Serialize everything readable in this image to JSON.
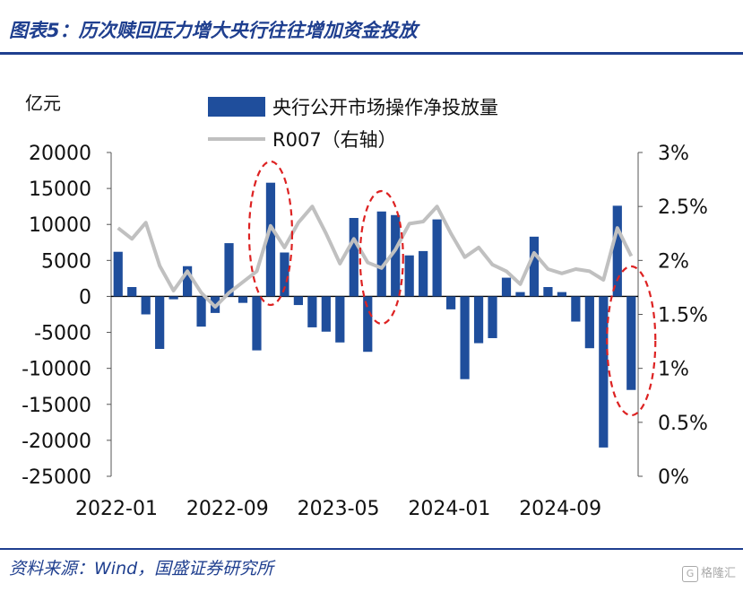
{
  "header": {
    "title": "图表5：历次赎回压力增大央行往往增加资金投放"
  },
  "footer": {
    "source": "资料来源：Wind，国盛证券研究所"
  },
  "watermark": {
    "logo": "G",
    "text": "格隆汇"
  },
  "chart_data": {
    "type": "bar",
    "y_left_unit": "亿元",
    "ylim_left": [
      -25000,
      20000
    ],
    "left_ticks": [
      "20000",
      "15000",
      "10000",
      "5000",
      "0",
      "-5000",
      "-10000",
      "-15000",
      "-20000",
      "-25000"
    ],
    "ylim_right": [
      0,
      3
    ],
    "right_ticks": [
      "3%",
      "2.5%",
      "2%",
      "1.5%",
      "1%",
      "0.5%",
      "0%"
    ],
    "x_tick_labels": [
      {
        "label": "2022-01",
        "index": 0
      },
      {
        "label": "2022-09",
        "index": 8
      },
      {
        "label": "2023-05",
        "index": 16
      },
      {
        "label": "2024-01",
        "index": 24
      },
      {
        "label": "2024-09",
        "index": 32
      }
    ],
    "categories": [
      "2022-01",
      "2022-02",
      "2022-03",
      "2022-04",
      "2022-05",
      "2022-06",
      "2022-07",
      "2022-08",
      "2022-09",
      "2022-10",
      "2022-11",
      "2022-12",
      "2023-01",
      "2023-02",
      "2023-03",
      "2023-04",
      "2023-05",
      "2023-06",
      "2023-07",
      "2023-08",
      "2023-09",
      "2023-10",
      "2023-11",
      "2023-12",
      "2024-01",
      "2024-02",
      "2024-03",
      "2024-04",
      "2024-05",
      "2024-06",
      "2024-07",
      "2024-08",
      "2024-09",
      "2024-10",
      "2024-11",
      "2024-12",
      "2025-01",
      "2025-02"
    ],
    "series": [
      {
        "name": "央行公开市场操作净投放量",
        "type": "bar",
        "axis": "left",
        "color": "#1f4e9c",
        "values": [
          6200,
          1300,
          -2500,
          -7300,
          -400,
          4200,
          -4200,
          -2300,
          7400,
          -900,
          -7500,
          15800,
          6100,
          -1200,
          -4300,
          -4900,
          -6400,
          10900,
          -7700,
          11800,
          11300,
          5700,
          6300,
          10700,
          -1800,
          -11500,
          -6500,
          -5800,
          2600,
          600,
          8300,
          1300,
          600,
          -3500,
          -7200,
          -21000,
          12600,
          -13000
        ]
      },
      {
        "name": "R007（右轴）",
        "type": "line",
        "axis": "right",
        "color": "#c0c0c0",
        "values": [
          2.3,
          2.2,
          2.35,
          1.95,
          1.72,
          1.9,
          1.7,
          1.57,
          1.7,
          1.8,
          1.9,
          2.32,
          2.12,
          2.35,
          2.5,
          2.25,
          1.97,
          2.2,
          1.98,
          1.93,
          2.1,
          2.34,
          2.36,
          2.5,
          2.25,
          2.03,
          2.12,
          1.96,
          1.9,
          1.78,
          2.07,
          1.92,
          1.88,
          1.92,
          1.9,
          1.82,
          2.3,
          2.04
        ]
      }
    ],
    "annotations": [
      {
        "shape": "dashed-ellipse",
        "color": "#dd2222",
        "around_index": 11
      },
      {
        "shape": "dashed-ellipse",
        "color": "#dd2222",
        "around_index": 19
      },
      {
        "shape": "dashed-ellipse",
        "color": "#dd2222",
        "around_index": 37
      }
    ],
    "legend_position": "top-center",
    "grid": false
  }
}
